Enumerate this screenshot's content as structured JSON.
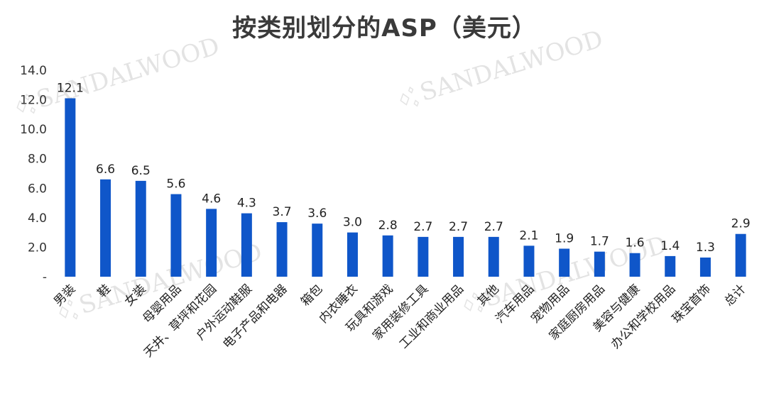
{
  "watermark": {
    "text": "SANDALWOOD",
    "color": "#d8d8d8"
  },
  "chart_data": {
    "type": "bar",
    "title": "按类别划分的ASP（美元）",
    "categories": [
      "男装",
      "鞋",
      "女装",
      "母婴用品",
      "天井、草坪和花园",
      "户外运动鞋服",
      "电子产品和电器",
      "箱包",
      "内衣睡衣",
      "玩具和游戏",
      "家用装修工具",
      "工业和商业用品",
      "其他",
      "汽车用品",
      "宠物用品",
      "家庭厨房用品",
      "美容与健康",
      "办公和学校用品",
      "珠宝首饰",
      "总计"
    ],
    "values": [
      12.1,
      6.6,
      6.5,
      5.6,
      4.6,
      4.3,
      3.7,
      3.6,
      3.0,
      2.8,
      2.7,
      2.7,
      2.7,
      2.1,
      1.9,
      1.7,
      1.6,
      1.4,
      1.3,
      2.9
    ],
    "data_labels": [
      "12.1",
      "6.6",
      "6.5",
      "5.6",
      "4.6",
      "4.3",
      "3.7",
      "3.6",
      "3.0",
      "2.8",
      "2.7",
      "2.7",
      "2.7",
      "2.1",
      "1.9",
      "1.7",
      "1.6",
      "1.4",
      "1.3",
      "2.9"
    ],
    "y_ticks": [
      0,
      2,
      4,
      6,
      8,
      10,
      12,
      14
    ],
    "y_tick_labels": [
      "-",
      "2.0",
      "4.0",
      "6.0",
      "8.0",
      "10.0",
      "12.0",
      "14.0"
    ],
    "ylim": [
      0,
      14
    ],
    "bar_color": "#0f56c9",
    "grid": false,
    "legend": "none"
  }
}
